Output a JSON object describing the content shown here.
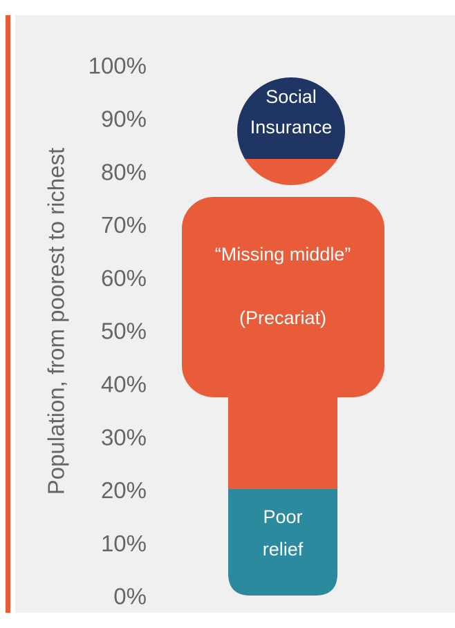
{
  "axis_label": "Population, from poorest to richest",
  "ticks": [
    "100%",
    "90%",
    "80%",
    "70%",
    "60%",
    "50%",
    "40%",
    "30%",
    "20%",
    "10%",
    "0%"
  ],
  "segments": [
    {
      "lines": [
        "Social",
        "Insurance"
      ]
    },
    {
      "lines": [
        "“Missing middle”",
        "(Precariat)"
      ]
    },
    {
      "lines": [
        "Poor",
        "relief"
      ]
    }
  ]
}
